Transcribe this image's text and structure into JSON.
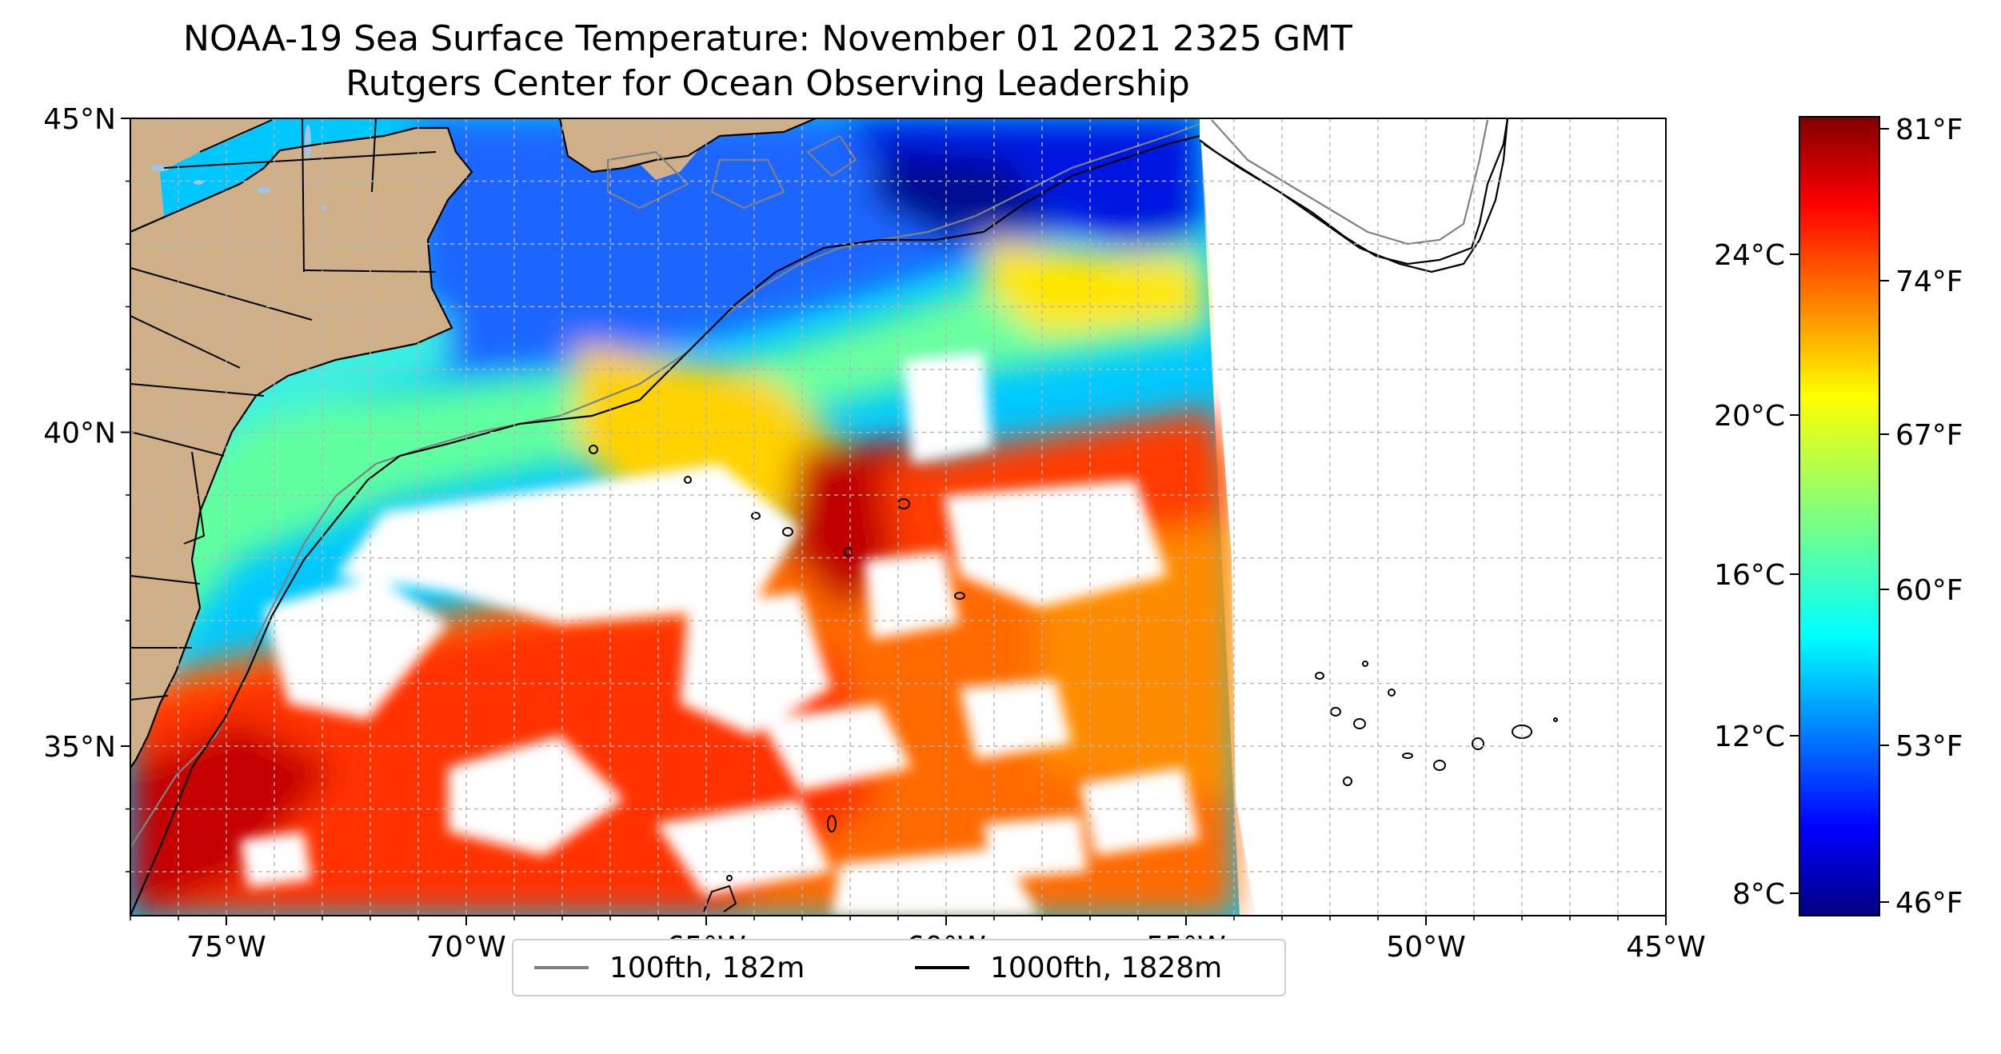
{
  "title": "NOAA-19 Sea Surface Temperature: November 01 2021 2325 GMT",
  "subtitle": "Rutgers Center for Ocean Observing Leadership",
  "map": {
    "lon_range": [
      -77,
      -45
    ],
    "lat_range": [
      32.3,
      45
    ],
    "lat_ticks": [
      {
        "value": 45,
        "label": "45°N"
      },
      {
        "value": 40,
        "label": "40°N"
      },
      {
        "value": 35,
        "label": "35°N"
      }
    ],
    "lon_ticks": [
      {
        "value": -75,
        "label": "75°W"
      },
      {
        "value": -70,
        "label": "70°W"
      },
      {
        "value": -65,
        "label": "65°W"
      },
      {
        "value": -60,
        "label": "60°W"
      },
      {
        "value": -55,
        "label": "55°W"
      },
      {
        "value": -50,
        "label": "50°W"
      },
      {
        "value": -45,
        "label": "45°W"
      }
    ],
    "gridlines": true,
    "land_color": "#cfb088",
    "lake_color": "#9ec6e8"
  },
  "colorbar": {
    "colormap": "jet",
    "celsius_ticks": [
      "24°C",
      "20°C",
      "16°C",
      "12°C",
      "8°C"
    ],
    "fahrenheit_ticks": [
      "81°F",
      "74°F",
      "67°F",
      "60°F",
      "53°F",
      "46°F"
    ]
  },
  "legend": {
    "placement": "bottom-center",
    "items": [
      {
        "label": "100fth, 182m",
        "color": "#808080"
      },
      {
        "label": "1000fth, 1828m",
        "color": "#000000"
      }
    ]
  }
}
